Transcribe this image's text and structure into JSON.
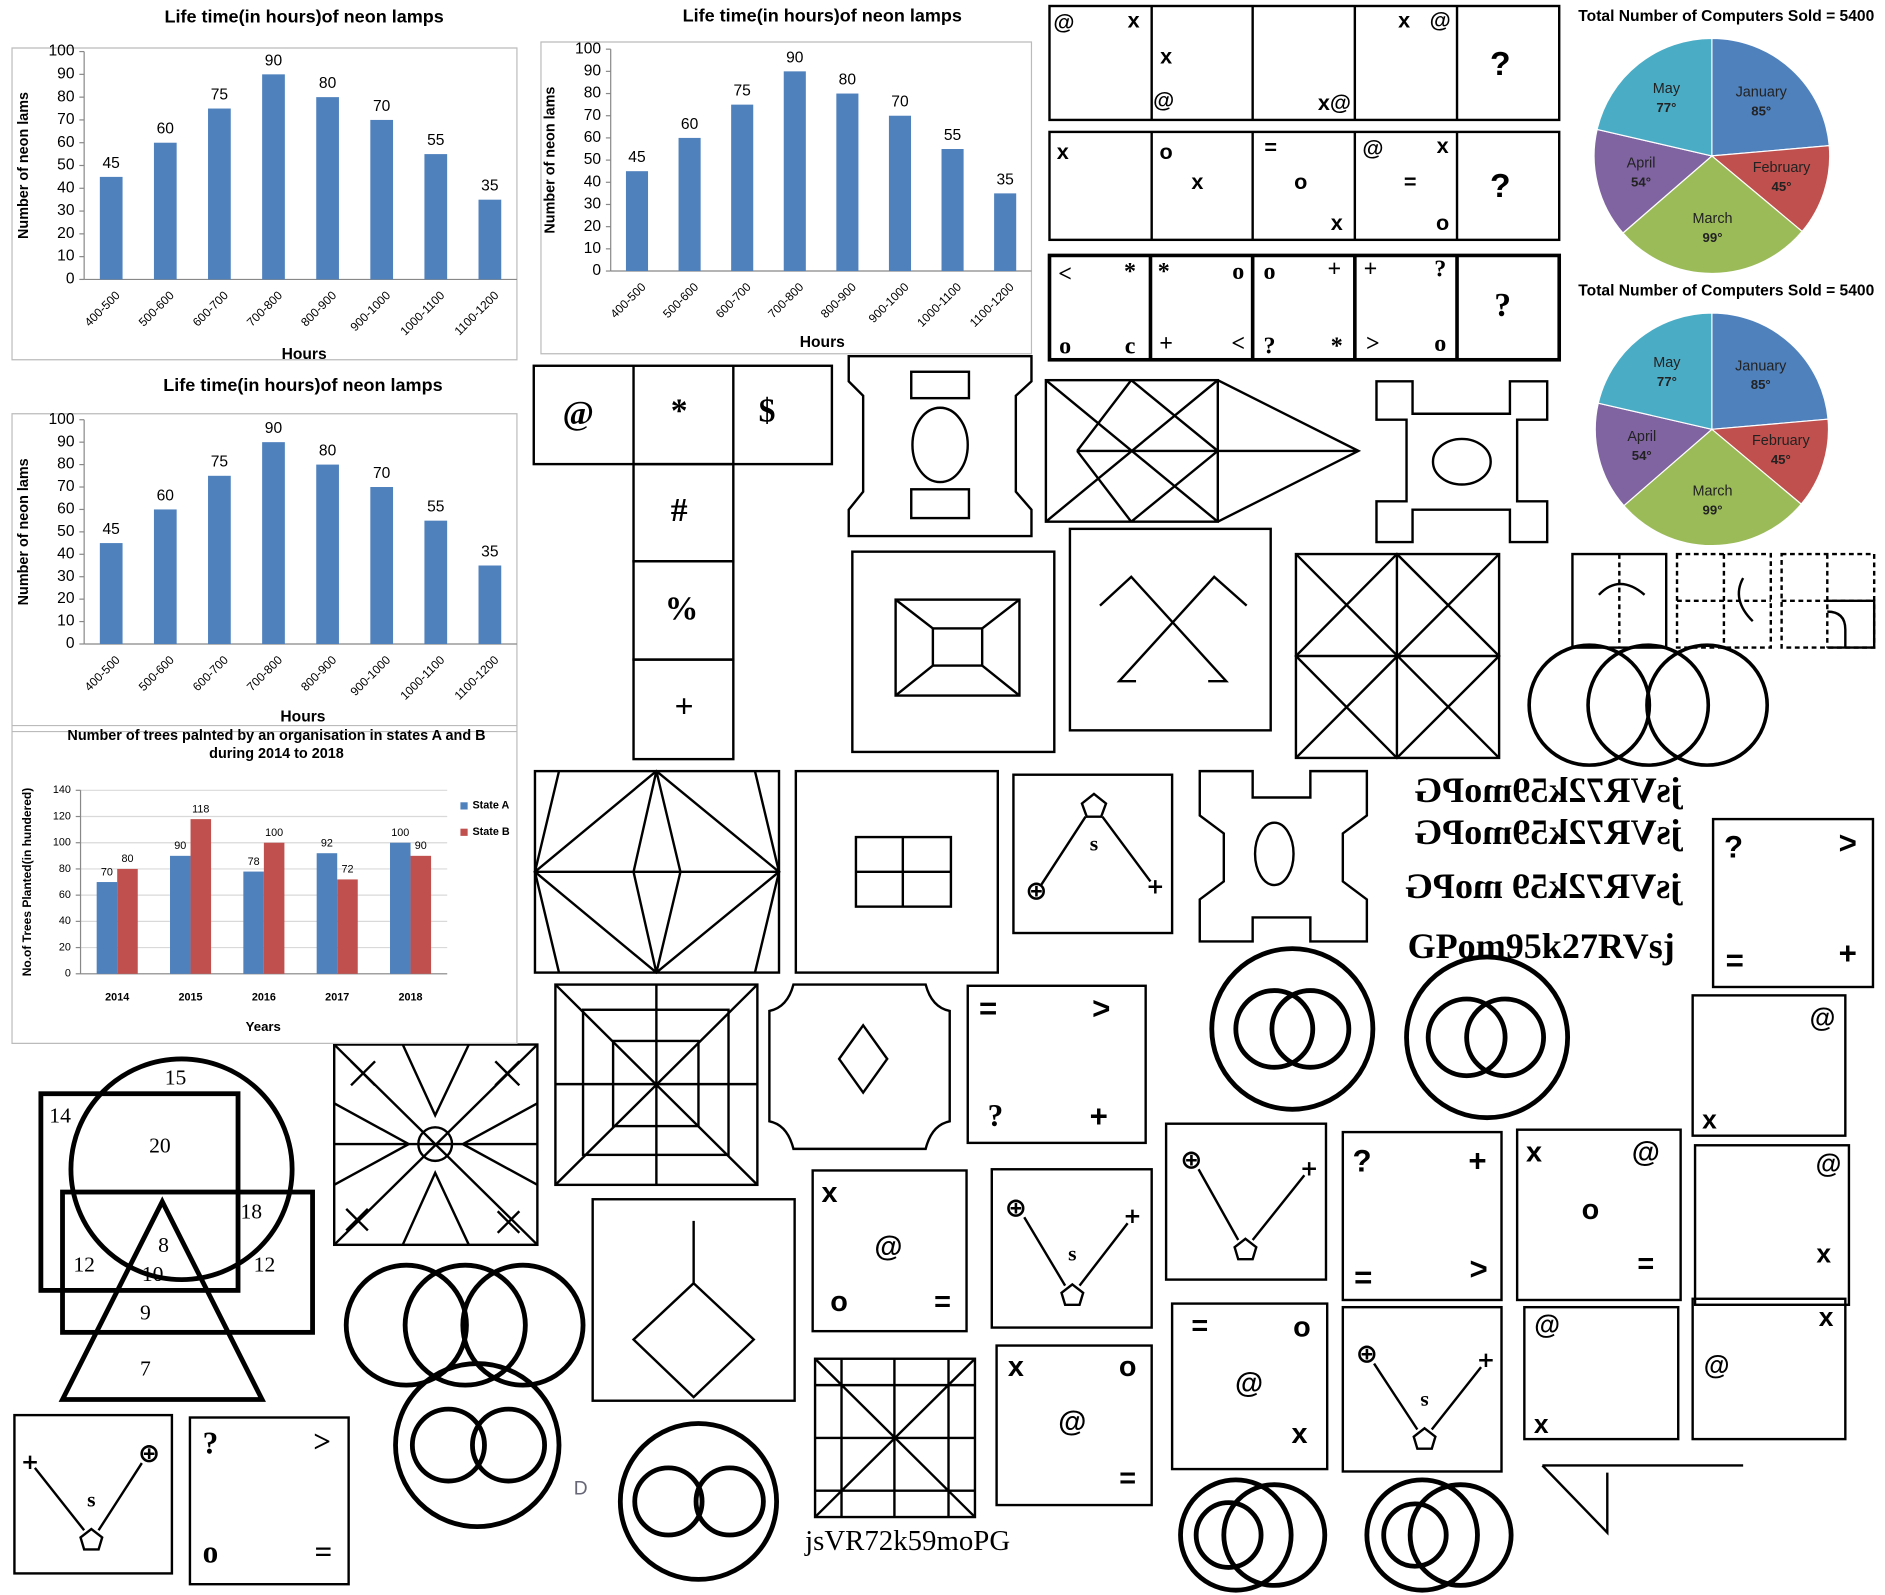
{
  "chart_data": [
    {
      "type": "bar",
      "title": "Life time(in hours)of neon lamps",
      "x_label": "Hours",
      "y_label": "Number of neon lams",
      "categories": [
        "400-500",
        "500-600",
        "600-700",
        "700-800",
        "800-900",
        "900-1000",
        "1000-1100",
        "1100-1200"
      ],
      "values": [
        45,
        60,
        75,
        90,
        80,
        70,
        55,
        35
      ],
      "color": "#4f81bd",
      "ylim": [
        0,
        100
      ],
      "yticks": [
        0,
        10,
        20,
        30,
        40,
        50,
        60,
        70,
        80,
        90,
        100
      ]
    },
    {
      "type": "bar",
      "title": "Life time(in hours)of neon lamps",
      "x_label": "Hours",
      "y_label": "Number of neon lams",
      "categories": [
        "400-500",
        "500-600",
        "600-700",
        "700-800",
        "800-900",
        "900-1000",
        "1000-1100",
        "1100-1200"
      ],
      "values": [
        45,
        60,
        75,
        90,
        80,
        70,
        55,
        35
      ],
      "color": "#4f81bd",
      "ylim": [
        0,
        100
      ],
      "yticks": [
        0,
        10,
        20,
        30,
        40,
        50,
        60,
        70,
        80,
        90,
        100
      ]
    },
    {
      "type": "bar",
      "title": "Life time(in hours)of neon lamps",
      "x_label": "Hours",
      "y_label": "Number of neon lams",
      "categories": [
        "400-500",
        "500-600",
        "600-700",
        "700-800",
        "800-900",
        "900-1000",
        "1000-1100",
        "1100-1200"
      ],
      "values": [
        45,
        60,
        75,
        90,
        80,
        70,
        55,
        35
      ],
      "color": "#4f81bd",
      "ylim": [
        0,
        100
      ],
      "yticks": [
        0,
        10,
        20,
        30,
        40,
        50,
        60,
        70,
        80,
        90,
        100
      ]
    },
    {
      "type": "bar",
      "title": "Number of trees palnted by an organisation in states A and B during 2014 to 2018",
      "x_label": "Years",
      "y_label": "No.of Trees Planted(in hundered)",
      "categories": [
        "2014",
        "2015",
        "2016",
        "2017",
        "2018"
      ],
      "series": [
        {
          "name": "State A",
          "color": "#4f81bd",
          "values": [
            70,
            90,
            78,
            92,
            100
          ]
        },
        {
          "name": "State B",
          "color": "#c0504d",
          "values": [
            80,
            118,
            100,
            72,
            90
          ]
        }
      ],
      "ylim": [
        0,
        140
      ],
      "yticks": [
        0,
        20,
        40,
        60,
        80,
        100,
        120,
        140
      ],
      "grid": true,
      "legend": "right"
    },
    {
      "type": "pie",
      "title": "Total Number of Computers Sold = 5400",
      "categories": [
        "January",
        "February",
        "March",
        "April",
        "May"
      ],
      "values": [
        85,
        45,
        99,
        54,
        77
      ],
      "value_labels": [
        "85°",
        "45°",
        "99°",
        "54°",
        "77°"
      ],
      "colors": [
        "#4f81bd",
        "#c0504d",
        "#9bbb59",
        "#8064a2",
        "#4bacc6"
      ]
    },
    {
      "type": "pie",
      "title": "Total Number of Computers Sold = 5400",
      "categories": [
        "January",
        "February",
        "March",
        "April",
        "May"
      ],
      "values": [
        85,
        45,
        99,
        54,
        77
      ],
      "value_labels": [
        "85°",
        "45°",
        "99°",
        "54°",
        "77°"
      ],
      "colors": [
        "#4f81bd",
        "#c0504d",
        "#9bbb59",
        "#8064a2",
        "#4bacc6"
      ]
    }
  ],
  "figures": [
    {
      "texts": [
        "@",
        "x",
        "x",
        "@",
        "x@",
        "x",
        "@",
        "?"
      ]
    },
    {
      "texts": [
        "x",
        "o",
        "x",
        "=",
        "o",
        "x",
        "@",
        "x",
        "=",
        "o",
        "?"
      ]
    },
    {
      "texts": [
        "<",
        "*",
        "*",
        "o",
        "o",
        "+",
        "+",
        "?",
        "o",
        "c",
        "+",
        "<",
        "?",
        "*",
        ">",
        "o",
        "?"
      ]
    },
    {
      "texts": [
        "@",
        "*",
        "$",
        "#",
        "%",
        "+"
      ]
    },
    {
      "texts": [
        "15",
        "14",
        "20",
        "18",
        "12",
        "8",
        "10",
        "12",
        "9",
        "7"
      ]
    },
    {
      "texts": [
        "jsVR72k59moPG",
        "jsVR72k59moPG",
        "jsVR72k59 moPG",
        "GPom95k27RVsj"
      ]
    },
    {
      "texts": [
        "jsVR72k59moPG",
        "D"
      ]
    },
    {
      "texts": [
        "?",
        ">",
        "=",
        "+"
      ]
    },
    {
      "texts": [
        "@",
        "x"
      ]
    },
    {
      "texts": [
        "=",
        ">",
        "?",
        "+"
      ]
    },
    {
      "texts": [
        "x",
        "@",
        "o",
        "="
      ]
    },
    {
      "texts": [
        "?",
        "+",
        "=",
        ">"
      ]
    },
    {
      "texts": [
        "x",
        "@",
        "o",
        "="
      ]
    },
    {
      "texts": [
        "@",
        "x"
      ]
    },
    {
      "texts": [
        "x",
        "o",
        "@",
        "="
      ]
    },
    {
      "texts": [
        "=",
        "o",
        "@",
        "x"
      ]
    },
    {
      "texts": [
        "@",
        "x"
      ]
    },
    {
      "texts": [
        "x",
        "@"
      ]
    },
    {
      "texts": [
        "?",
        ">",
        "o",
        "="
      ]
    },
    {
      "texts": [
        "⊕",
        "s",
        "+"
      ]
    },
    {
      "texts": [
        "⊕",
        "s",
        "+"
      ]
    },
    {
      "texts": [
        "⊕",
        "+"
      ]
    },
    {
      "texts": [
        "⊕",
        "s",
        "+"
      ]
    },
    {
      "texts": [
        "+",
        "⊕",
        "s"
      ]
    }
  ]
}
